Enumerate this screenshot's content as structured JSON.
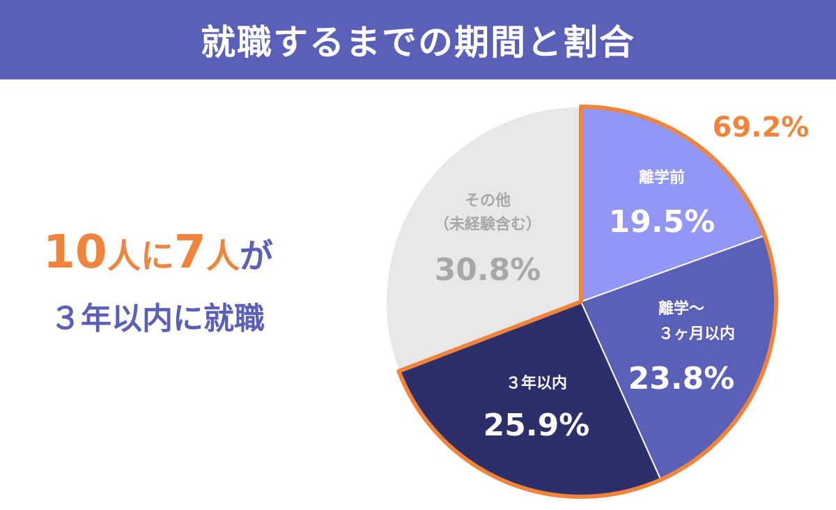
{
  "header": {
    "title": "就職するまでの期間と割合"
  },
  "headline": {
    "num1": "10",
    "unit1": "人",
    "mid": "に",
    "num2": "7",
    "unit2": "人",
    "conj": "が",
    "line2": "３年以内に就職"
  },
  "chart_data": {
    "type": "pie",
    "title": "就職するまでの期間と割合",
    "slices": [
      {
        "label_lines": [
          "離学前"
        ],
        "value": 19.5,
        "value_text": "19.5%",
        "color": "#9296f4",
        "text_color": "#ffffff"
      },
      {
        "label_lines": [
          "離学～",
          "３ヶ月以内"
        ],
        "value": 23.8,
        "value_text": "23.8%",
        "color": "#5a5fb8",
        "text_color": "#ffffff"
      },
      {
        "label_lines": [
          "３年以内"
        ],
        "value": 25.9,
        "value_text": "25.9%",
        "color": "#2d2f6b",
        "text_color": "#ffffff"
      },
      {
        "label_lines": [
          "その他",
          "（未経験含む）"
        ],
        "value": 30.8,
        "value_text": "30.8%",
        "color": "#e8e8e8",
        "text_color": "#a8a8a8"
      }
    ],
    "highlight": {
      "value": 69.2,
      "text": "69.2%",
      "color": "#f0843c"
    }
  }
}
